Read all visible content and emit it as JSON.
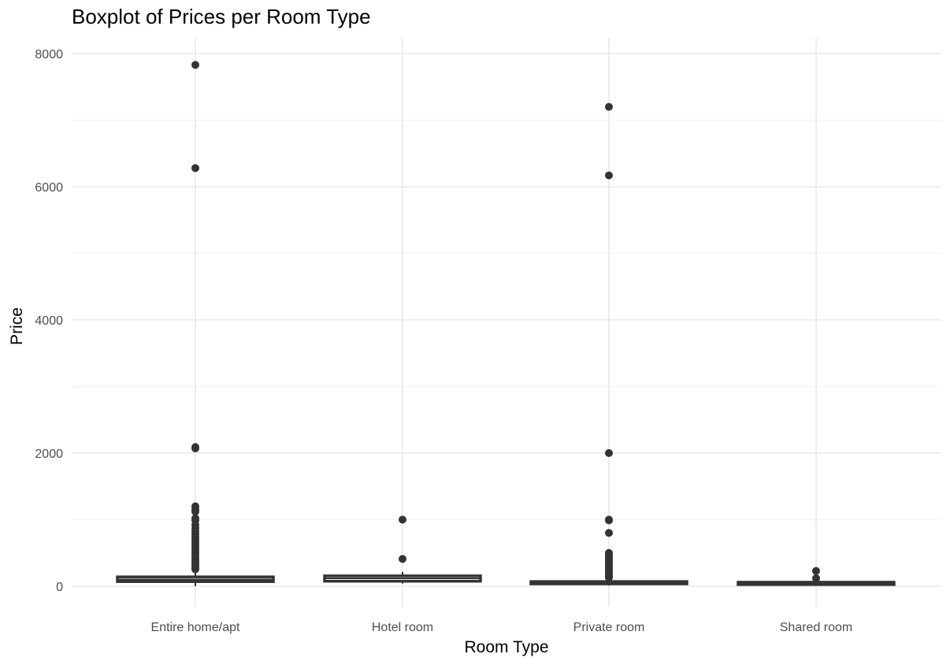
{
  "chart_data": {
    "type": "boxplot",
    "title": "Boxplot of Prices per Room Type",
    "xlabel": "Room Type",
    "ylabel": "Price",
    "categories": [
      "Entire home/apt",
      "Hotel room",
      "Private room",
      "Shared room"
    ],
    "y_ticks": [
      0,
      2000,
      4000,
      6000,
      8000
    ],
    "ylim": [
      0,
      8000
    ],
    "grid": true,
    "boxes": [
      {
        "category": "Entire home/apt",
        "whisker_low": 0,
        "q1": 69,
        "median": 100,
        "q3": 140,
        "whisker_high": 246,
        "outliers": [
          7830,
          6280,
          2090,
          2070,
          1200,
          1150,
          1120,
          1020,
          990,
          920,
          870,
          820,
          780,
          740,
          700,
          660,
          620,
          580,
          540,
          500,
          460,
          420,
          390,
          360,
          330,
          300,
          275,
          255
        ]
      },
      {
        "category": "Hotel room",
        "whisker_low": 40,
        "q1": 75,
        "median": 118,
        "q3": 155,
        "whisker_high": 215,
        "outliers": [
          1000,
          410
        ]
      },
      {
        "category": "Private room",
        "whisker_low": 10,
        "q1": 35,
        "median": 50,
        "q3": 70,
        "whisker_high": 120,
        "outliers": [
          7200,
          6170,
          2000,
          1000,
          990,
          800,
          500,
          470,
          440,
          410,
          380,
          350,
          320,
          290,
          260,
          230,
          200,
          175,
          150,
          130
        ]
      },
      {
        "category": "Shared room",
        "whisker_low": 10,
        "q1": 25,
        "median": 40,
        "q3": 60,
        "whisker_high": 100,
        "outliers": [
          230,
          120
        ]
      }
    ],
    "colors": {
      "box_fill": "#ffffff",
      "box_stroke": "#333333",
      "outlier": "#333333",
      "grid_major": "#ebebeb",
      "grid_minor": "#f2f2f2"
    }
  }
}
